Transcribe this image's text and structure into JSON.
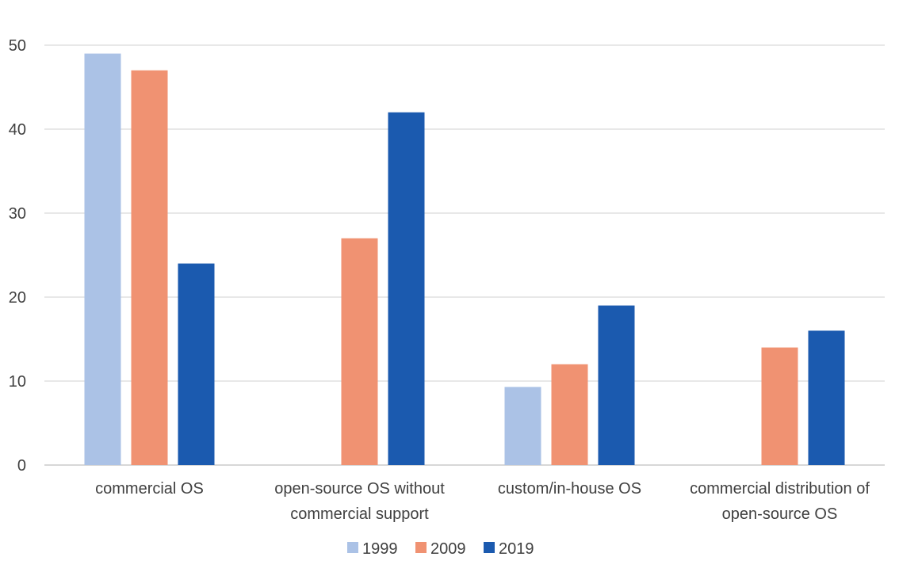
{
  "chart_data": {
    "type": "bar",
    "title": "",
    "xlabel": "",
    "ylabel": "",
    "ylim": [
      0,
      50
    ],
    "yticks": [
      0,
      10,
      20,
      30,
      40,
      50
    ],
    "grid": true,
    "legend_position": "bottom",
    "categories": [
      [
        "commercial OS"
      ],
      [
        "open-source OS without",
        "commercial support"
      ],
      [
        "custom/in-house OS"
      ],
      [
        "commercial distribution of",
        "open-source OS"
      ]
    ],
    "series": [
      {
        "name": "1999",
        "color": "#abc2e6",
        "values": [
          49,
          null,
          9.3,
          null
        ]
      },
      {
        "name": "2009",
        "color": "#f09272",
        "values": [
          47,
          27,
          12,
          14
        ]
      },
      {
        "name": "2019",
        "color": "#1b5aaf",
        "values": [
          24,
          42,
          19,
          16
        ]
      }
    ]
  }
}
